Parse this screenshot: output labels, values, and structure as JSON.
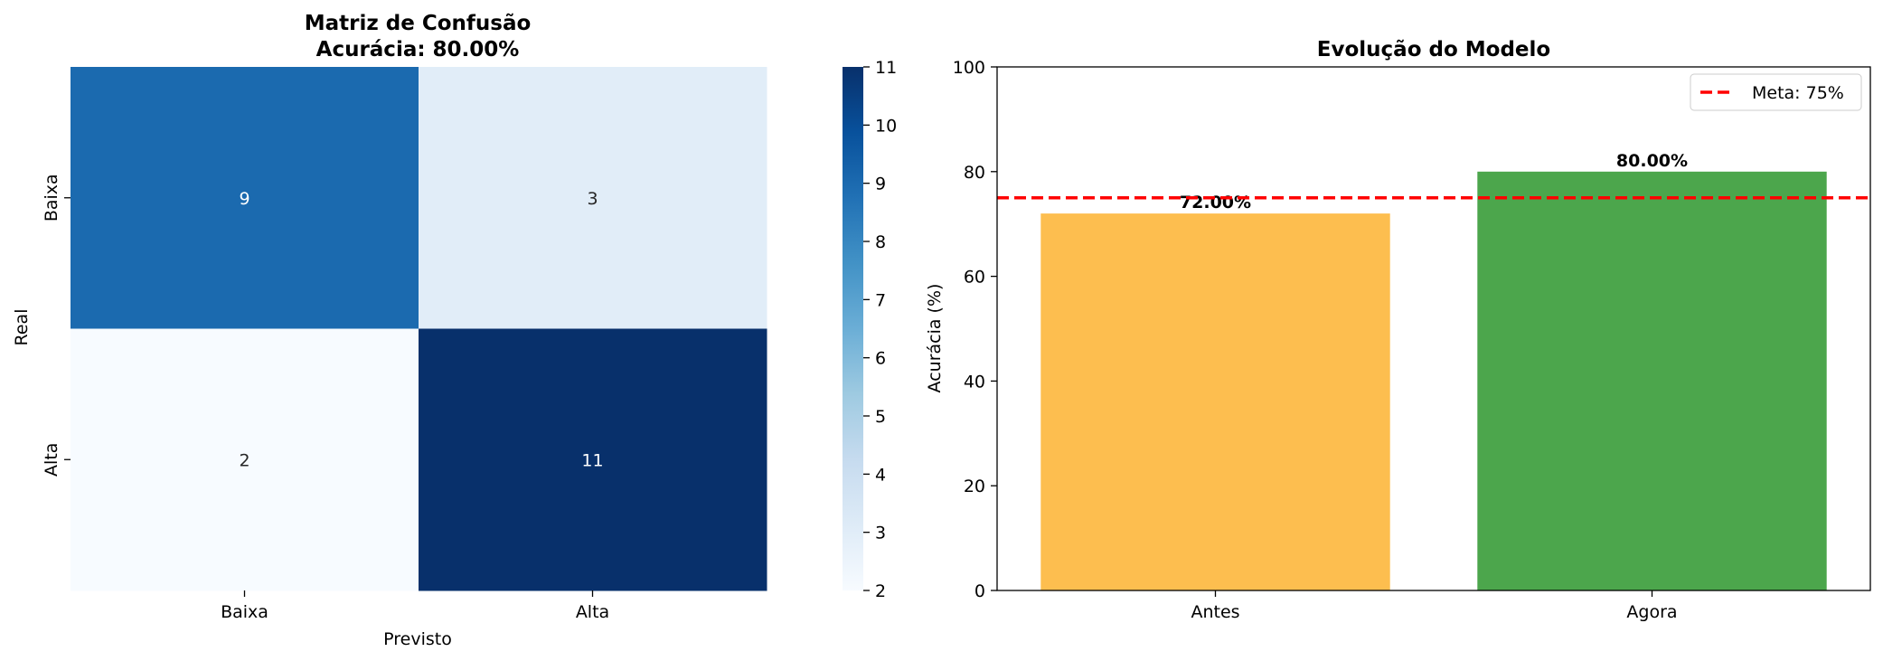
{
  "chart_data": [
    {
      "type": "heatmap",
      "title": "Matriz de Confusão",
      "subtitle": "Acurácia: 80.00%",
      "xlabel": "Previsto",
      "ylabel": "Real",
      "x_categories": [
        "Baixa",
        "Alta"
      ],
      "y_categories": [
        "Baixa",
        "Alta"
      ],
      "values": [
        [
          9,
          3
        ],
        [
          2,
          11
        ]
      ],
      "colormap": "Blues",
      "colorbar": {
        "min": 2,
        "max": 11,
        "ticks": [
          "2",
          "3",
          "4",
          "5",
          "6",
          "7",
          "8",
          "9",
          "10",
          "11"
        ]
      }
    },
    {
      "type": "bar",
      "title": "Evolução do Modelo",
      "xlabel": "",
      "ylabel": "Acurácia (%)",
      "categories": [
        "Antes",
        "Agora"
      ],
      "values": [
        72.0,
        80.0
      ],
      "value_labels": [
        "72.00%",
        "80.00%"
      ],
      "colors": [
        "#FDBE4F",
        "#4CA64C"
      ],
      "ylim": [
        0,
        100
      ],
      "yticks": [
        "0",
        "20",
        "40",
        "60",
        "80",
        "100"
      ],
      "reference_line": {
        "y": 75,
        "label": "Meta: 75%",
        "color": "#FF0000",
        "style": "dashed"
      },
      "legend": {
        "entries": [
          "Meta: 75%"
        ],
        "placement": "top-right"
      },
      "grid": false
    }
  ]
}
